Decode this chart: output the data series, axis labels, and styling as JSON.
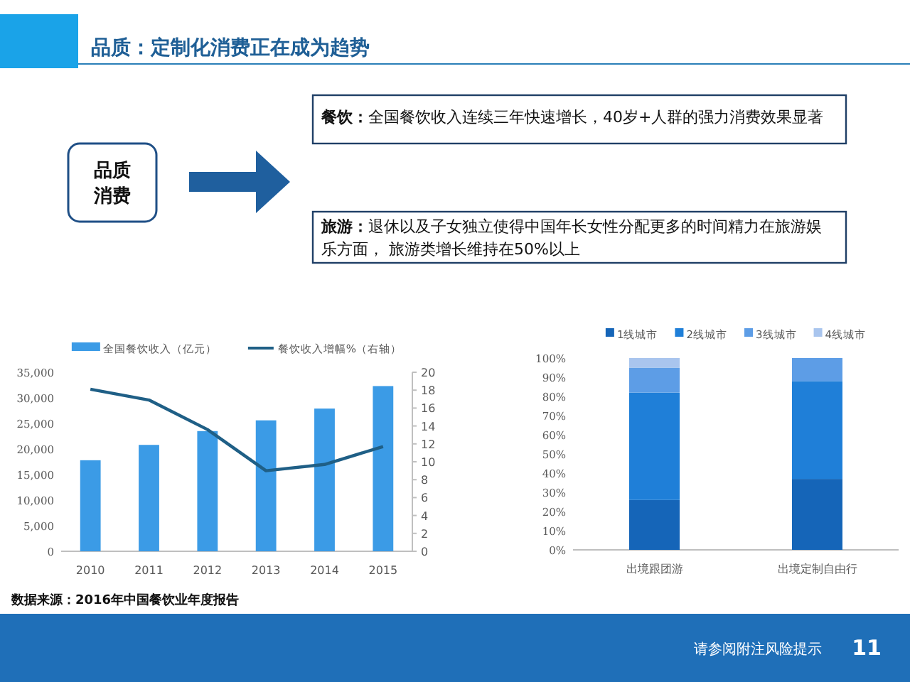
{
  "chart_data": [
    {
      "type": "other",
      "title": "品质：定制化消费正在成为趋势",
      "annotations": [
        "品质消费",
        "餐饮：全国餐饮收入连续三年快速增长，40岁+人群的强力消费效果显著",
        "旅游：退休以及子女独立使得中国年长女性分配更多的时间精力在旅游娱乐方面， 旅游类增长维持在50%以上",
        "请参阅附注风险提示",
        "11"
      ]
    },
    {
      "type": "bar",
      "categories": [
        "2010",
        "2011",
        "2012",
        "2013",
        "2014",
        "2015"
      ],
      "series": [
        {
          "name": "全国餐饮收入（亿元）",
          "color": "#3b9be6",
          "values": [
            17800,
            20800,
            23500,
            25600,
            27900,
            32300
          ]
        },
        {
          "name": "餐饮收入增幅%（右轴）",
          "type": "line",
          "axis": "y2",
          "color": "#1f5f86",
          "values": [
            18.1,
            16.9,
            13.6,
            9.0,
            9.7,
            11.7
          ]
        }
      ],
      "ylim": [
        0,
        35000
      ],
      "yticks": [
        0,
        {
          "value": 5000,
          "label": "5,000"
        },
        {
          "value": 10000,
          "label": "10,000"
        },
        {
          "value": 15000,
          "label": "15,000"
        },
        {
          "value": 20000,
          "label": "20,000"
        },
        {
          "value": 25000,
          "label": "25,000"
        },
        {
          "value": 30000,
          "label": "30,000"
        },
        {
          "value": 35000,
          "label": "35,000"
        }
      ],
      "y2lim": [
        0,
        20
      ],
      "y2ticks": [
        0,
        2,
        4,
        6,
        8,
        10,
        12,
        14,
        16,
        18,
        20
      ],
      "legend": "top",
      "grid": false,
      "marker": "none",
      "annotations": [
        "数据来源：2016年中国餐饮业年度报告"
      ]
    },
    {
      "type": "bar",
      "stacked": true,
      "categories": [
        "出境跟团游",
        "出境定制自由行"
      ],
      "series": [
        {
          "name": "1线城市",
          "color": "#1565b8",
          "values": [
            26,
            37
          ]
        },
        {
          "name": "2线城市",
          "color": "#1f7fd8",
          "values": [
            56,
            51
          ]
        },
        {
          "name": "3线城市",
          "color": "#5d9de6",
          "values": [
            13,
            12
          ]
        },
        {
          "name": "4线城市",
          "color": "#a9c5ee",
          "values": [
            5,
            0
          ]
        }
      ],
      "ylim": [
        0,
        100
      ],
      "yticks": [
        {
          "value": 0,
          "label": "0%"
        },
        {
          "value": 10,
          "label": "10%"
        },
        {
          "value": 20,
          "label": "20%"
        },
        {
          "value": 30,
          "label": "30%"
        },
        {
          "value": 40,
          "label": "40%"
        },
        {
          "value": 50,
          "label": "50%"
        },
        {
          "value": 60,
          "label": "60%"
        },
        {
          "value": 70,
          "label": "70%"
        },
        {
          "value": 80,
          "label": "80%"
        },
        {
          "value": 90,
          "label": "90%"
        },
        {
          "value": 100,
          "label": "100%"
        }
      ],
      "legend": "top",
      "grid": false
    }
  ]
}
